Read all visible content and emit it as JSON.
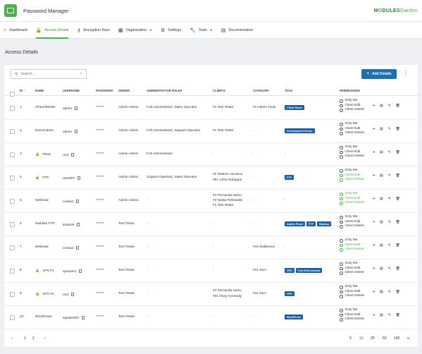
{
  "app": {
    "title": "Password Manager",
    "brand_a": "M",
    "brand_b": "DULES",
    "brand_c": "Garden"
  },
  "nav": [
    {
      "label": "Dashboard",
      "icon": "home-icon",
      "glyph": "⌂",
      "caret": ""
    },
    {
      "label": "Access Details",
      "icon": "lock-icon",
      "glyph": "🔒",
      "caret": ""
    },
    {
      "label": "Encryption Keys",
      "icon": "key-icon",
      "glyph": "⚷",
      "caret": ""
    },
    {
      "label": "Organization",
      "icon": "grid-icon",
      "glyph": "▦",
      "caret": "▼"
    },
    {
      "label": "Settings",
      "icon": "gear-icon",
      "glyph": "⚙",
      "caret": ""
    },
    {
      "label": "Tools",
      "icon": "wrench-icon",
      "glyph": "🔧",
      "caret": "▼"
    },
    {
      "label": "Documentation",
      "icon": "document-icon",
      "glyph": "▤",
      "caret": ""
    }
  ],
  "page_title": "Access Details",
  "search": {
    "placeholder": "Search...",
    "clear": "×"
  },
  "add_button": "Add Details",
  "columns": {
    "id": "ID",
    "id_sort": "↑",
    "name": "NAME",
    "username": "USERNAME",
    "password": "PASSWORD",
    "owner": "OWNER",
    "admin_roles": "ADMINISTRATOR ROLES",
    "clients": "CLIENTS",
    "category": "CATEGORY",
    "tags": "TAGS",
    "permissions": "PERMISSIONS"
  },
  "permission_labels": [
    "Only Me",
    "Client Edit",
    "Client Delete"
  ],
  "rows": [
    {
      "id": "1",
      "lock": false,
      "name": "cPanel/WHM",
      "username": "admin",
      "password": "******",
      "owner": "Admin Admin",
      "roles": "Full Administrator, Sales Operator",
      "clients": [
        "#1 Test Tester"
      ],
      "category": "#1 Admin Tools",
      "tags": [
        "Client Panel"
      ],
      "perm_on": [
        false,
        false,
        false
      ]
    },
    {
      "id": "2",
      "lock": false,
      "name": "DirectAdmin",
      "username": "admin",
      "password": "******",
      "owner": "Admin Admin",
      "roles": "Full Administrator, Support Operator",
      "clients": [
        "#1 Test Tester"
      ],
      "category": "-",
      "tags": [
        "Development Server"
      ],
      "perm_on": [
        false,
        false,
        false
      ]
    },
    {
      "id": "3",
      "lock": true,
      "name": "Plesk",
      "username": "root",
      "password": "******",
      "owner": "Admin Admin",
      "roles": "Full Administrator",
      "clients": [
        "-"
      ],
      "category": "-",
      "tags": [
        "-"
      ],
      "perm_on": [
        false,
        false,
        false
      ]
    },
    {
      "id": "4",
      "lock": true,
      "name": "FTP",
      "username": "user007",
      "password": "******",
      "owner": "Admin Admin",
      "roles": "Support Operator, Sales Operator",
      "clients": [
        "#2 Shalom Jacobos",
        "#61 Lisha Sahagun"
      ],
      "category": "-",
      "tags": [
        "FTP"
      ],
      "perm_on": [
        false,
        true,
        true
      ]
    },
    {
      "id": "5",
      "lock": false,
      "name": "Webmail",
      "username": "contact",
      "password": "******",
      "owner": "Admin Admin",
      "roles": "-",
      "clients": [
        "#4 Fernanda Samu",
        "#3 Nelda Pelkowski",
        "#1 Test Tester"
      ],
      "category": "-",
      "tags": [
        "-"
      ],
      "perm_on": [
        true,
        true,
        true
      ]
    },
    {
      "id": "6",
      "lock": false,
      "name": "Website FTP",
      "username": "kdwo3s",
      "password": "******",
      "owner": "Test Tester",
      "roles": "-",
      "clients": [
        "-"
      ],
      "category": "-",
      "tags": [
        "Admin Panel",
        "FTP",
        "Backup"
      ],
      "perm_on": [
        false,
        false,
        false
      ]
    },
    {
      "id": "7",
      "lock": false,
      "name": "Webmail",
      "username": "contact",
      "password": "******",
      "owner": "Test Tester",
      "roles": "-",
      "clients": [
        "-"
      ],
      "category": "#10 Mailboxes",
      "tags": [
        "-"
      ],
      "perm_on": [
        false,
        true,
        true
      ]
    },
    {
      "id": "8",
      "lock": true,
      "name": "VPS #1",
      "username": "vpsuser1",
      "password": "******",
      "owner": "Test Tester",
      "roles": "-",
      "clients": [
        "-"
      ],
      "category": "#11 SSH",
      "tags": [
        "VPS",
        "Test Environment"
      ],
      "perm_on": [
        false,
        false,
        false
      ]
    },
    {
      "id": "9",
      "lock": true,
      "name": "VPS #2",
      "username": "root",
      "password": "******",
      "owner": "Test Tester",
      "roles": "-",
      "clients": [
        "#4 Fernanda Samu",
        "#21 Glory Kennady"
      ],
      "category": "#11 SSH",
      "tags": [
        "VPS"
      ],
      "perm_on": [
        false,
        false,
        false
      ]
    },
    {
      "id": "10",
      "lock": false,
      "name": "WordPress",
      "username": "wpadm007",
      "password": "******",
      "owner": "Test Tester",
      "roles": "-",
      "clients": [
        "-"
      ],
      "category": "-",
      "tags": [
        "WordPress"
      ],
      "perm_on": [
        false,
        false,
        false
      ]
    }
  ],
  "pager": {
    "prev": "‹",
    "pages": [
      "1",
      "2"
    ],
    "next": "›",
    "sizes": [
      "5",
      "10",
      "25",
      "50",
      "100",
      "∞"
    ],
    "current_size": "10"
  },
  "colors": {
    "accent_green": "#4caf50",
    "primary_blue": "#1f6fb5",
    "tag_blue": "#1f5fa8"
  }
}
